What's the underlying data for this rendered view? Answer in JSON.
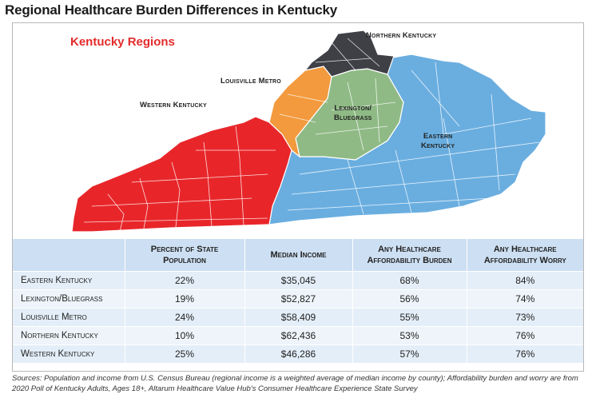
{
  "title": "Regional Healthcare Burden Differences in Kentucky",
  "map": {
    "title": "Kentucky Regions",
    "regions": [
      {
        "id": "western",
        "label": "Western Kentucky",
        "color": "#e8262a"
      },
      {
        "id": "louisville",
        "label": "Louisville Metro",
        "color": "#f39a3e"
      },
      {
        "id": "northern",
        "label": "Northern Kentucky",
        "color": "#3e4046"
      },
      {
        "id": "lexington",
        "label_line1": "Lexington/",
        "label_line2": "Bluegrass",
        "color": "#8fba85"
      },
      {
        "id": "eastern",
        "label_line1": "Eastern",
        "label_line2": "Kentucky",
        "color": "#6aaee0"
      }
    ]
  },
  "table": {
    "headers": [
      "",
      "Percent of State Population",
      "Median Income",
      "Any Healthcare Affordability Burden",
      "Any Healthcare Affordability Worry"
    ],
    "rows": [
      {
        "region": "Eastern Kentucky",
        "percent": "22%",
        "income": "$35,045",
        "burden": "68%",
        "worry": "84%"
      },
      {
        "region": "Lexington/Bluegrass",
        "percent": "19%",
        "income": "$52,827",
        "burden": "56%",
        "worry": "74%"
      },
      {
        "region": "Louisville Metro",
        "percent": "24%",
        "income": "$58,409",
        "burden": "55%",
        "worry": "73%"
      },
      {
        "region": "Northern Kentucky",
        "percent": "10%",
        "income": "$62,436",
        "burden": "53%",
        "worry": "76%"
      },
      {
        "region": "Western Kentucky",
        "percent": "25%",
        "income": "$46,286",
        "burden": "57%",
        "worry": "76%"
      }
    ]
  },
  "footnote": "Sources: Population and income from U.S. Census Bureau (regional income is a weighted average of median income by county); Affordability burden and worry are from 2020 Poll of Kentucky Adults, Ages 18+, Altarum Healthcare Value Hub's Consumer Healthcare Experience State Survey"
}
